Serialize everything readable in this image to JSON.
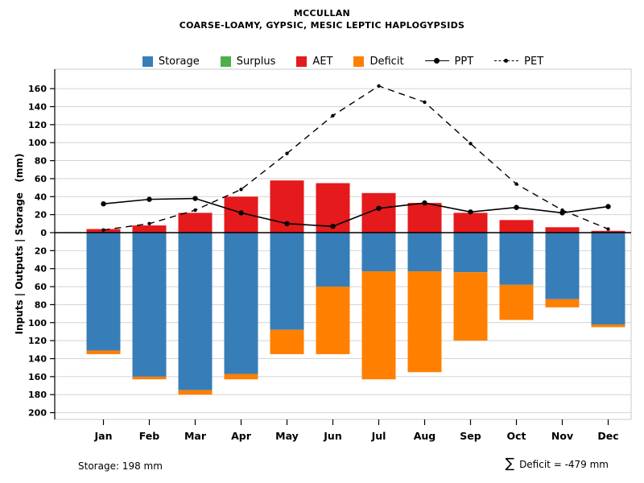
{
  "title": {
    "line1": "MCCULLAN",
    "line2": "COARSE-LOAMY, GYPSIC, MESIC LEPTIC HAPLOGYPSIDS"
  },
  "legend": [
    {
      "label": "Storage",
      "type": "swatch",
      "color": "#377EB8"
    },
    {
      "label": "Surplus",
      "type": "swatch",
      "color": "#4DAF4A"
    },
    {
      "label": "AET",
      "type": "swatch",
      "color": "#E41A1C"
    },
    {
      "label": "Deficit",
      "type": "swatch",
      "color": "#FF7F00"
    },
    {
      "label": "PPT",
      "type": "line-solid",
      "color": "#000000"
    },
    {
      "label": "PET",
      "type": "line-dashed",
      "color": "#000000"
    }
  ],
  "footer": {
    "storage_note": "Storage: 198 mm",
    "sigma": "∑",
    "deficit_text": "Deficit = -479 mm"
  },
  "chart_data": {
    "type": "bar",
    "title": "MCCULLAN",
    "subtitle": "COARSE-LOAMY, GYPSIC, MESIC LEPTIC HAPLOGYPSIDS",
    "categories": [
      "Jan",
      "Feb",
      "Mar",
      "Apr",
      "May",
      "Jun",
      "Jul",
      "Aug",
      "Sep",
      "Oct",
      "Nov",
      "Dec"
    ],
    "series": [
      {
        "name": "Storage",
        "kind": "bar-down",
        "color": "#377EB8",
        "values": [
          131,
          160,
          175,
          157,
          108,
          60,
          43,
          43,
          44,
          58,
          74,
          102
        ]
      },
      {
        "name": "Surplus",
        "kind": "bar-up",
        "color": "#4DAF4A",
        "values": [
          0,
          0,
          0,
          0,
          0,
          0,
          0,
          0,
          0,
          0,
          0,
          0
        ]
      },
      {
        "name": "AET",
        "kind": "bar-up",
        "color": "#E41A1C",
        "values": [
          4,
          8,
          22,
          40,
          58,
          55,
          44,
          33,
          22,
          14,
          6,
          2
        ]
      },
      {
        "name": "Deficit",
        "kind": "bar-down-stacked",
        "color": "#FF7F00",
        "values": [
          4,
          3,
          5,
          6,
          27,
          75,
          120,
          112,
          76,
          39,
          9,
          3
        ]
      },
      {
        "name": "PPT",
        "kind": "line-solid",
        "color": "#000000",
        "values": [
          32,
          37,
          38,
          22,
          10,
          7,
          27,
          33,
          23,
          28,
          22,
          29
        ]
      },
      {
        "name": "PET",
        "kind": "line-dashed",
        "color": "#000000",
        "values": [
          3,
          10,
          25,
          48,
          88,
          130,
          163,
          145,
          99,
          54,
          25,
          4
        ]
      }
    ],
    "ylabel": "Inputs | Outputs | Storage   (mm)",
    "xlabel": "",
    "y_units": "mm",
    "ylim": [
      -200,
      160
    ],
    "ytick_step": 20,
    "grid": true,
    "legend_position": "top",
    "annotations": {
      "storage_capacity": "Storage: 198 mm",
      "deficit_sum": "∑ Deficit = -479 mm"
    }
  }
}
